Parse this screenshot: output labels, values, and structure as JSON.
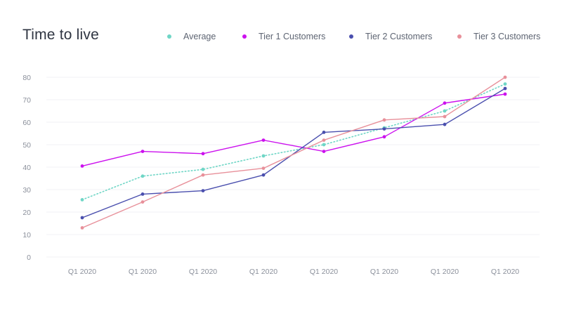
{
  "chart_data": {
    "type": "line",
    "title": "Time to live",
    "categories": [
      "Q1 2020",
      "Q1 2020",
      "Q1 2020",
      "Q1 2020",
      "Q1 2020",
      "Q1 2020",
      "Q1 2020",
      "Q1 2020"
    ],
    "ylim": [
      0,
      80
    ],
    "yticks": [
      "0",
      "10",
      "20",
      "30",
      "40",
      "50",
      "60",
      "70",
      "80"
    ],
    "grid": true,
    "legend_position": "top-right",
    "series": [
      {
        "name": "Tier 1 Customers",
        "color": "#cc11ee",
        "dash": "solid",
        "values": [
          40.5,
          47,
          46,
          52,
          47,
          53.5,
          68.5,
          72.5
        ]
      },
      {
        "name": "Tier 2 Customers",
        "color": "#4a4fae",
        "dash": "solid",
        "values": [
          17.5,
          28,
          29.5,
          36.5,
          55.5,
          57,
          59,
          75
        ]
      },
      {
        "name": "Tier 3 Customers",
        "color": "#e8909a",
        "dash": "solid",
        "values": [
          13,
          24.5,
          36.5,
          39.5,
          52,
          61,
          62.5,
          80
        ]
      },
      {
        "name": "Average",
        "color": "#6fd6c6",
        "dash": "dotted",
        "values": [
          25.5,
          36,
          39,
          45,
          50,
          57.5,
          65,
          77
        ]
      }
    ]
  },
  "legend": [
    {
      "label": "Average",
      "color": "#6fd6c6"
    },
    {
      "label": "Tier 1 Customers",
      "color": "#cc11ee"
    },
    {
      "label": "Tier 2 Customers",
      "color": "#4a4fae"
    },
    {
      "label": "Tier 3 Customers",
      "color": "#e8909a"
    }
  ]
}
